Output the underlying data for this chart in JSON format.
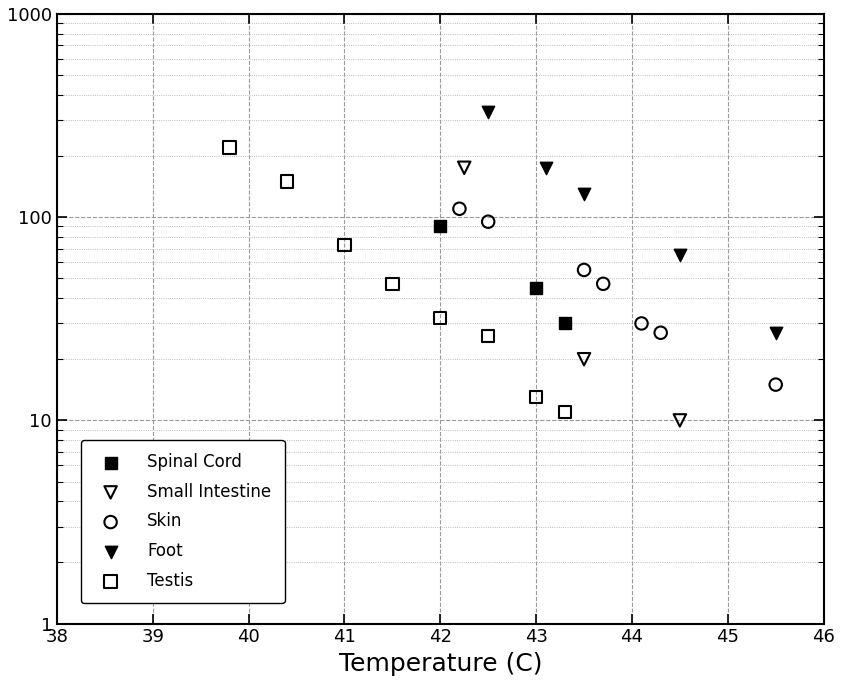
{
  "title": "",
  "xlabel": "Temperature (C)",
  "ylabel": "",
  "xlim": [
    38,
    46
  ],
  "ylim_log": [
    1,
    1000
  ],
  "xticks": [
    38,
    39,
    40,
    41,
    42,
    43,
    44,
    45,
    46
  ],
  "yticks_log": [
    1,
    10,
    100,
    1000
  ],
  "series": {
    "Spinal Cord": {
      "marker": "s",
      "filled": true,
      "x": [
        42.0,
        43.0,
        43.3
      ],
      "y": [
        90,
        45,
        30
      ]
    },
    "Small Intestine": {
      "marker": "v",
      "filled": false,
      "x": [
        42.25,
        43.5,
        44.5
      ],
      "y": [
        175,
        20,
        10
      ]
    },
    "Skin": {
      "marker": "o",
      "filled": false,
      "x": [
        42.2,
        42.5,
        43.5,
        43.7,
        44.1,
        44.3,
        45.5
      ],
      "y": [
        110,
        95,
        55,
        47,
        30,
        27,
        15
      ]
    },
    "Foot": {
      "marker": "v",
      "filled": true,
      "x": [
        42.5,
        43.1,
        43.5,
        44.5,
        45.5
      ],
      "y": [
        330,
        175,
        130,
        65,
        27
      ]
    },
    "Testis": {
      "marker": "s",
      "filled": false,
      "x": [
        39.8,
        40.4,
        41.0,
        41.5,
        42.0,
        42.5,
        43.0,
        43.3
      ],
      "y": [
        220,
        150,
        73,
        47,
        32,
        26,
        13,
        11
      ]
    }
  },
  "legend_loc": "lower left",
  "background_color": "#ffffff",
  "xlabel_fontsize": 18,
  "tick_fontsize": 13,
  "marker_size": 80
}
